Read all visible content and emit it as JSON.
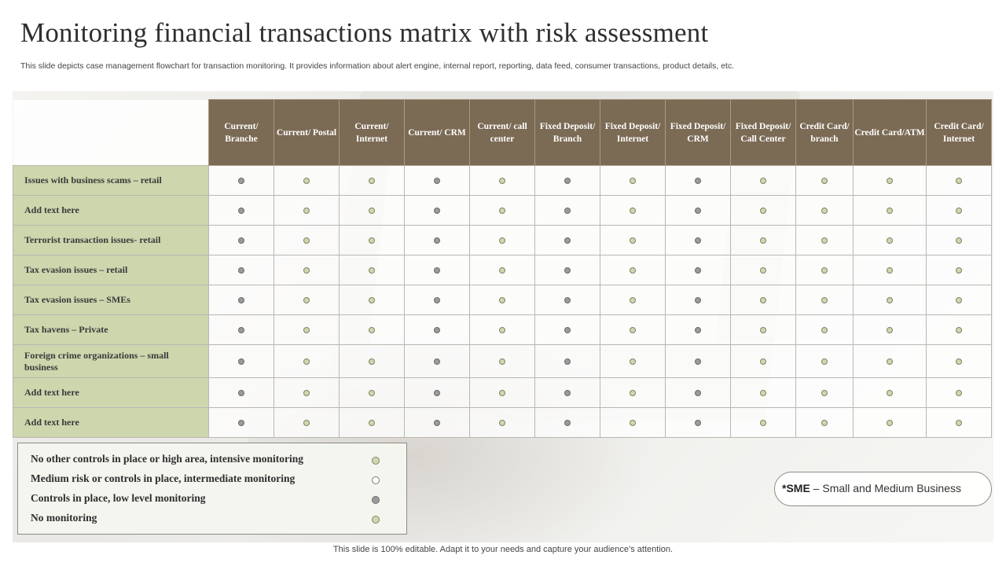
{
  "page": {
    "title": "Monitoring financial transactions matrix with risk assessment",
    "subtitle": "This slide depicts case management flowchart for transaction monitoring. It provides information about alert engine, internal report, reporting, data feed, consumer transactions, product details, etc.",
    "footer": "This slide is 100% editable. Adapt it to your needs and capture your audience’s attention."
  },
  "colors": {
    "header_bg": "#7b6a54",
    "row_label_bg": "#cdd6ad",
    "dot_light": "#cfd7ae",
    "dot_gray": "#9b9b9b",
    "dot_white": "#ffffff"
  },
  "matrix": {
    "columns": [
      "Current/ Branche",
      "Current/ Postal",
      "Current/ Internet",
      "Current/ CRM",
      "Current/ call center",
      "Fixed Deposit/ Branch",
      "Fixed Deposit/ Internet",
      "Fixed Deposit/ CRM",
      "Fixed Deposit/ Call Center",
      "Credit Card/ branch",
      "Credit Card/ATM",
      "Credit Card/ Internet"
    ],
    "rows": [
      {
        "label": "Issues with business scams – retail",
        "cells": [
          "gray",
          "light",
          "light",
          "gray",
          "light",
          "gray",
          "light",
          "gray",
          "light",
          "light",
          "light",
          "light"
        ]
      },
      {
        "label": "Add text here",
        "cells": [
          "gray",
          "light",
          "light",
          "gray",
          "light",
          "gray",
          "light",
          "gray",
          "light",
          "light",
          "light",
          "light"
        ]
      },
      {
        "label": "Terrorist transaction issues- retail",
        "cells": [
          "gray",
          "light",
          "light",
          "gray",
          "light",
          "gray",
          "light",
          "gray",
          "light",
          "light",
          "light",
          "light"
        ]
      },
      {
        "label": "Tax evasion issues – retail",
        "cells": [
          "gray",
          "light",
          "light",
          "gray",
          "light",
          "gray",
          "light",
          "gray",
          "light",
          "light",
          "light",
          "light"
        ]
      },
      {
        "label": "Tax evasion issues – SMEs",
        "cells": [
          "gray",
          "light",
          "light",
          "gray",
          "light",
          "gray",
          "light",
          "gray",
          "light",
          "light",
          "light",
          "light"
        ]
      },
      {
        "label": "Tax havens – Private",
        "cells": [
          "gray",
          "light",
          "light",
          "gray",
          "light",
          "gray",
          "light",
          "gray",
          "light",
          "light",
          "light",
          "light"
        ]
      },
      {
        "label": "Foreign crime organizations – small business",
        "cells": [
          "gray",
          "light",
          "light",
          "gray",
          "light",
          "gray",
          "light",
          "gray",
          "light",
          "light",
          "light",
          "light"
        ]
      },
      {
        "label": "Add text here",
        "cells": [
          "gray",
          "light",
          "light",
          "gray",
          "light",
          "gray",
          "light",
          "gray",
          "light",
          "light",
          "light",
          "light"
        ]
      },
      {
        "label": "Add text here",
        "cells": [
          "gray",
          "light",
          "light",
          "gray",
          "light",
          "gray",
          "light",
          "gray",
          "light",
          "light",
          "light",
          "light"
        ]
      }
    ]
  },
  "legend": [
    {
      "text": "No other controls in place or high area, intensive monitoring",
      "dot": "light"
    },
    {
      "text": "Medium risk or controls in place, intermediate monitoring",
      "dot": "white"
    },
    {
      "text": "Controls in place, low level monitoring",
      "dot": "gray"
    },
    {
      "text": "No monitoring",
      "dot": "light"
    }
  ],
  "note": {
    "prefix": "*SME",
    "text": " – Small and Medium Business"
  }
}
